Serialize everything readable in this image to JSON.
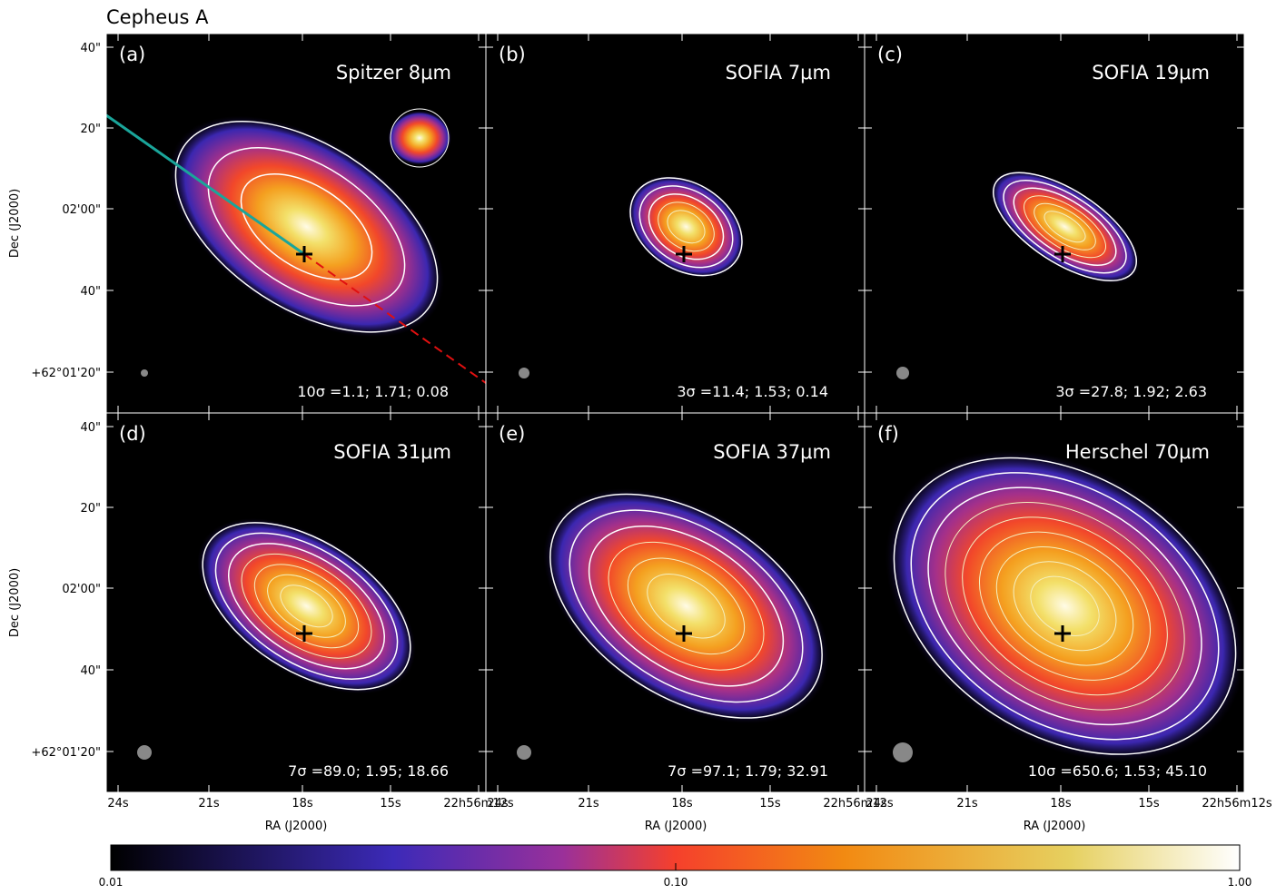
{
  "title": "Cepheus A",
  "y_axis_label": "Dec (J2000)",
  "x_axis_label": "RA (J2000)",
  "y_tick_labels": [
    "40\"",
    "20\"",
    "02'00\"",
    "40\"",
    "+62°01'20\""
  ],
  "x_tick_labels": [
    "24s",
    "21s",
    "18s",
    "15s",
    "22h56m12s"
  ],
  "panels": [
    {
      "label": "(a)",
      "name": "Spitzer 8μm",
      "stats": "10σ =1.1; 1.71; 0.08"
    },
    {
      "label": "(b)",
      "name": "SOFIA 7μm",
      "stats": "3σ =11.4; 1.53; 0.14"
    },
    {
      "label": "(c)",
      "name": "SOFIA 19μm",
      "stats": "3σ =27.8; 1.92; 2.63"
    },
    {
      "label": "(d)",
      "name": "SOFIA 31μm",
      "stats": "7σ =89.0; 1.95; 18.66"
    },
    {
      "label": "(e)",
      "name": "SOFIA 37μm",
      "stats": "7σ =97.1; 1.79; 32.91"
    },
    {
      "label": "(f)",
      "name": "Herschel 70μm",
      "stats": "10σ =650.6; 1.53; 45.10"
    }
  ],
  "colorbar": {
    "tick_labels": [
      "0.01",
      "0.10",
      "1.00"
    ]
  }
}
